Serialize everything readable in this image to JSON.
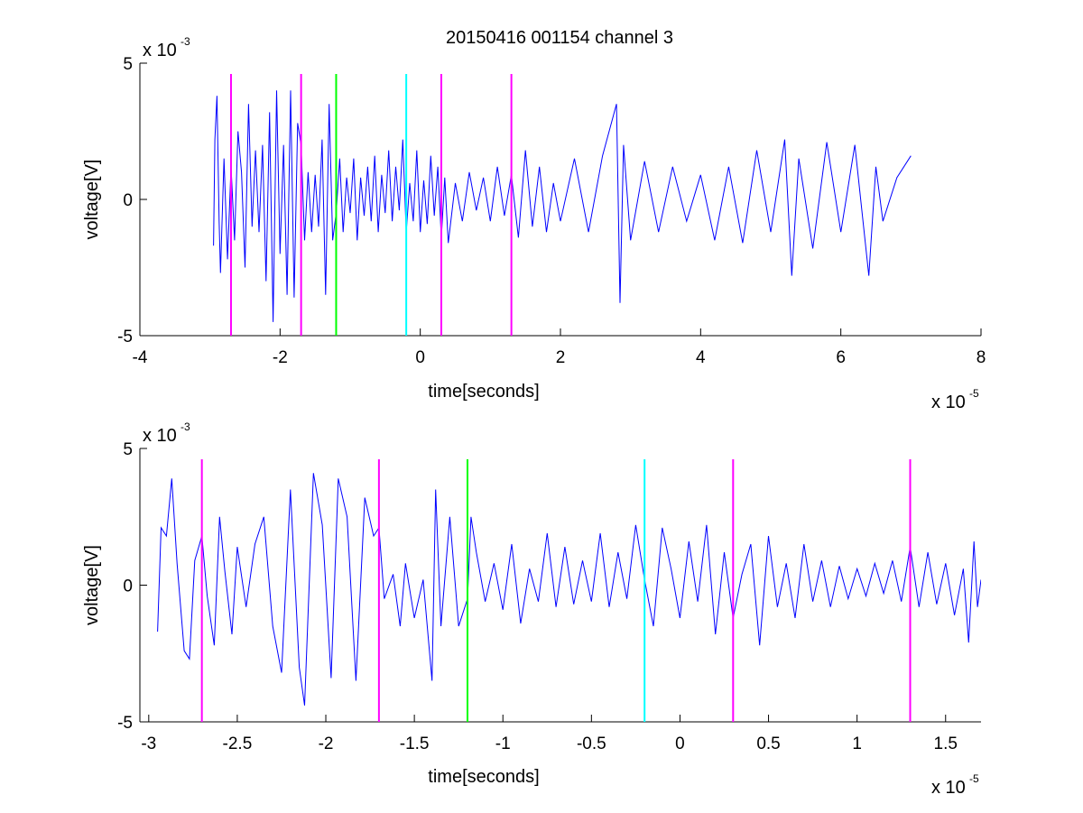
{
  "figure_title": "20150416 001154 channel 3",
  "chart_data": [
    {
      "type": "line",
      "title": "20150416 001154 channel 3",
      "xlabel": "time[seconds]",
      "ylabel": "voltage[V]",
      "xlim": [
        -4e-05,
        8e-05
      ],
      "ylim": [
        -0.005,
        0.005
      ],
      "x_ticks": [
        -4e-05,
        -2e-05,
        0,
        2e-05,
        4e-05,
        6e-05,
        8e-05
      ],
      "x_tick_labels": [
        "-4",
        "-2",
        "0",
        "2",
        "4",
        "6",
        "8"
      ],
      "y_ticks": [
        -0.005,
        0,
        0.005
      ],
      "y_tick_labels": [
        "-5",
        "0",
        "5"
      ],
      "x_exponent": {
        "base": "x 10",
        "power": "-5"
      },
      "y_exponent": {
        "base": "x 10",
        "power": "-3"
      },
      "grid": false,
      "series": [
        {
          "color": "#0000ff",
          "x_start": -2.95e-05,
          "x_end": 7e-05,
          "points": [
            [
              -2.95e-05,
              -0.0017
            ],
            [
              -2.93e-05,
              0.0022
            ],
            [
              -2.9e-05,
              0.0038
            ],
            [
              -2.87e-05,
              -0.0008
            ],
            [
              -2.85e-05,
              -0.0027
            ],
            [
              -2.8e-05,
              0.0015
            ],
            [
              -2.75e-05,
              -0.0022
            ],
            [
              -2.7e-05,
              0.0012
            ],
            [
              -2.65e-05,
              -0.0015
            ],
            [
              -2.6e-05,
              0.0025
            ],
            [
              -2.55e-05,
              0.001
            ],
            [
              -2.5e-05,
              -0.0025
            ],
            [
              -2.45e-05,
              0.0035
            ],
            [
              -2.4e-05,
              -0.001
            ],
            [
              -2.35e-05,
              0.0018
            ],
            [
              -2.3e-05,
              -0.0012
            ],
            [
              -2.25e-05,
              0.002
            ],
            [
              -2.2e-05,
              -0.003
            ],
            [
              -2.15e-05,
              0.0032
            ],
            [
              -2.1e-05,
              -0.0045
            ],
            [
              -2.05e-05,
              0.004
            ],
            [
              -2e-05,
              -0.002
            ],
            [
              -1.95e-05,
              0.002
            ],
            [
              -1.9e-05,
              -0.0035
            ],
            [
              -1.85e-05,
              0.004
            ],
            [
              -1.8e-05,
              -0.0036
            ],
            [
              -1.75e-05,
              0.0028
            ],
            [
              -1.7e-05,
              0.002
            ],
            [
              -1.65e-05,
              -0.0015
            ],
            [
              -1.6e-05,
              0.001
            ],
            [
              -1.55e-05,
              -0.0012
            ],
            [
              -1.5e-05,
              0.0009
            ],
            [
              -1.45e-05,
              -0.001
            ],
            [
              -1.4e-05,
              0.0022
            ],
            [
              -1.35e-05,
              -0.0035
            ],
            [
              -1.3e-05,
              0.0035
            ],
            [
              -1.25e-05,
              -0.0015
            ],
            [
              -1.2e-05,
              -0.0005
            ],
            [
              -1.15e-05,
              0.0015
            ],
            [
              -1.1e-05,
              -0.0012
            ],
            [
              -1.05e-05,
              0.0008
            ],
            [
              -1e-05,
              -0.0005
            ],
            [
              -9.5e-06,
              0.0015
            ],
            [
              -9e-06,
              -0.0015
            ],
            [
              -8.5e-06,
              0.0008
            ],
            [
              -8e-06,
              -0.0006
            ],
            [
              -7.5e-06,
              0.0012
            ],
            [
              -7e-06,
              -0.0008
            ],
            [
              -6.5e-06,
              0.0016
            ],
            [
              -6e-06,
              -0.0012
            ],
            [
              -5.5e-06,
              0.0009
            ],
            [
              -5e-06,
              -0.0005
            ],
            [
              -4.5e-06,
              0.0018
            ],
            [
              -4e-06,
              -0.0008
            ],
            [
              -3.5e-06,
              0.0012
            ],
            [
              -3e-06,
              -0.0004
            ],
            [
              -2.5e-06,
              0.0022
            ],
            [
              -2e-06,
              -0.0012
            ],
            [
              -1.5e-06,
              0.0006
            ],
            [
              -1e-06,
              -0.0008
            ],
            [
              -5e-07,
              0.0018
            ],
            [
              0,
              -0.0012
            ],
            [
              5e-07,
              0.0007
            ],
            [
              1e-06,
              -0.0009
            ],
            [
              1.5e-06,
              0.0016
            ],
            [
              2e-06,
              -0.0006
            ],
            [
              2.5e-06,
              0.0012
            ],
            [
              3e-06,
              -0.0014
            ],
            [
              3.5e-06,
              0.0008
            ],
            [
              4e-06,
              -0.0016
            ],
            [
              5e-06,
              0.0006
            ],
            [
              6e-06,
              -0.0008
            ],
            [
              7e-06,
              0.001
            ],
            [
              8e-06,
              -0.0004
            ],
            [
              9e-06,
              0.0008
            ],
            [
              1e-05,
              -0.0008
            ],
            [
              1.1e-05,
              0.0012
            ],
            [
              1.2e-05,
              -0.0006
            ],
            [
              1.3e-05,
              0.0009
            ],
            [
              1.4e-05,
              -0.0014
            ],
            [
              1.5e-05,
              0.0018
            ],
            [
              1.6e-05,
              -0.001
            ],
            [
              1.7e-05,
              0.0012
            ],
            [
              1.8e-05,
              -0.0012
            ],
            [
              1.9e-05,
              0.0006
            ],
            [
              2e-05,
              -0.0008
            ],
            [
              2.2e-05,
              0.0015
            ],
            [
              2.4e-05,
              -0.0012
            ],
            [
              2.6e-05,
              0.0016
            ],
            [
              2.8e-05,
              0.0035
            ],
            [
              2.85e-05,
              -0.0038
            ],
            [
              2.9e-05,
              0.002
            ],
            [
              3e-05,
              -0.0015
            ],
            [
              3.2e-05,
              0.0014
            ],
            [
              3.4e-05,
              -0.0012
            ],
            [
              3.6e-05,
              0.0012
            ],
            [
              3.8e-05,
              -0.0008
            ],
            [
              4e-05,
              0.0009
            ],
            [
              4.2e-05,
              -0.0015
            ],
            [
              4.4e-05,
              0.0012
            ],
            [
              4.6e-05,
              -0.0016
            ],
            [
              4.8e-05,
              0.0018
            ],
            [
              5e-05,
              -0.0012
            ],
            [
              5.2e-05,
              0.0022
            ],
            [
              5.3e-05,
              -0.0028
            ],
            [
              5.4e-05,
              0.0015
            ],
            [
              5.6e-05,
              -0.0018
            ],
            [
              5.8e-05,
              0.0021
            ],
            [
              6e-05,
              -0.0012
            ],
            [
              6.2e-05,
              0.002
            ],
            [
              6.4e-05,
              -0.0028
            ],
            [
              6.5e-05,
              0.0012
            ],
            [
              6.6e-05,
              -0.0008
            ],
            [
              6.8e-05,
              0.0008
            ],
            [
              7e-05,
              0.0016
            ]
          ]
        }
      ],
      "markers": [
        {
          "x": -2.7e-05,
          "color": "#ff00ff"
        },
        {
          "x": -1.7e-05,
          "color": "#ff00ff"
        },
        {
          "x": -1.2e-05,
          "color": "#00ff00"
        },
        {
          "x": -2e-06,
          "color": "#00ffff"
        },
        {
          "x": 3e-06,
          "color": "#ff00ff"
        },
        {
          "x": 1.3e-05,
          "color": "#ff00ff"
        }
      ]
    },
    {
      "type": "line",
      "title": "",
      "xlabel": "time[seconds]",
      "ylabel": "voltage[V]",
      "xlim": [
        -3.05e-05,
        1.7e-05
      ],
      "ylim": [
        -0.005,
        0.005
      ],
      "x_ticks": [
        -3e-05,
        -2.5e-05,
        -2e-05,
        -1.5e-05,
        -1e-05,
        -5e-06,
        0,
        5e-06,
        1e-05,
        1.5e-05
      ],
      "x_tick_labels": [
        "-3",
        "-2.5",
        "-2",
        "-1.5",
        "-1",
        "-0.5",
        "0",
        "0.5",
        "1",
        "1.5"
      ],
      "y_ticks": [
        -0.005,
        0,
        0.005
      ],
      "y_tick_labels": [
        "-5",
        "0",
        "5"
      ],
      "x_exponent": {
        "base": "x 10",
        "power": "-5"
      },
      "y_exponent": {
        "base": "x 10",
        "power": "-3"
      },
      "grid": false,
      "series": [
        {
          "color": "#0000ff",
          "points": [
            [
              -2.95e-05,
              -0.0017
            ],
            [
              -2.93e-05,
              0.0021
            ],
            [
              -2.9e-05,
              0.0018
            ],
            [
              -2.87e-05,
              0.0039
            ],
            [
              -2.84e-05,
              0.0008
            ],
            [
              -2.8e-05,
              -0.0024
            ],
            [
              -2.77e-05,
              -0.0027
            ],
            [
              -2.74e-05,
              0.0009
            ],
            [
              -2.7e-05,
              0.0018
            ],
            [
              -2.67e-05,
              -0.0004
            ],
            [
              -2.63e-05,
              -0.0022
            ],
            [
              -2.6e-05,
              0.0025
            ],
            [
              -2.57e-05,
              0.0005
            ],
            [
              -2.53e-05,
              -0.0018
            ],
            [
              -2.5e-05,
              0.0014
            ],
            [
              -2.45e-05,
              -0.0008
            ],
            [
              -2.4e-05,
              0.0015
            ],
            [
              -2.35e-05,
              0.0025
            ],
            [
              -2.3e-05,
              -0.0015
            ],
            [
              -2.25e-05,
              -0.0032
            ],
            [
              -2.2e-05,
              0.0035
            ],
            [
              -2.15e-05,
              -0.003
            ],
            [
              -2.12e-05,
              -0.0044
            ],
            [
              -2.07e-05,
              0.0041
            ],
            [
              -2.02e-05,
              0.0022
            ],
            [
              -1.97e-05,
              -0.0034
            ],
            [
              -1.93e-05,
              0.0039
            ],
            [
              -1.88e-05,
              0.0025
            ],
            [
              -1.83e-05,
              -0.0035
            ],
            [
              -1.78e-05,
              0.0032
            ],
            [
              -1.73e-05,
              0.0018
            ],
            [
              -1.7e-05,
              0.0021
            ],
            [
              -1.67e-05,
              -0.0005
            ],
            [
              -1.62e-05,
              0.0004
            ],
            [
              -1.58e-05,
              -0.0015
            ],
            [
              -1.55e-05,
              0.0008
            ],
            [
              -1.5e-05,
              -0.0012
            ],
            [
              -1.45e-05,
              0.0002
            ],
            [
              -1.4e-05,
              -0.0035
            ],
            [
              -1.38e-05,
              0.0035
            ],
            [
              -1.35e-05,
              -0.0015
            ],
            [
              -1.3e-05,
              0.0025
            ],
            [
              -1.25e-05,
              -0.0015
            ],
            [
              -1.2e-05,
              -0.0005
            ],
            [
              -1.18e-05,
              0.0025
            ],
            [
              -1.15e-05,
              0.0012
            ],
            [
              -1.1e-05,
              -0.0006
            ],
            [
              -1.05e-05,
              0.0008
            ],
            [
              -1e-05,
              -0.0009
            ],
            [
              -9.5e-06,
              0.0015
            ],
            [
              -9e-06,
              -0.0014
            ],
            [
              -8.5e-06,
              0.0006
            ],
            [
              -8e-06,
              -0.0006
            ],
            [
              -7.5e-06,
              0.0019
            ],
            [
              -7e-06,
              -0.0008
            ],
            [
              -6.5e-06,
              0.0014
            ],
            [
              -6e-06,
              -0.0007
            ],
            [
              -5.5e-06,
              0.0009
            ],
            [
              -5e-06,
              -0.0006
            ],
            [
              -4.5e-06,
              0.0019
            ],
            [
              -4e-06,
              -0.0008
            ],
            [
              -3.5e-06,
              0.0012
            ],
            [
              -3e-06,
              -0.0005
            ],
            [
              -2.5e-06,
              0.0022
            ],
            [
              -2e-06,
              0.0002
            ],
            [
              -1.5e-06,
              -0.0015
            ],
            [
              -1e-06,
              0.0021
            ],
            [
              -5e-07,
              0.0006
            ],
            [
              0,
              -0.0012
            ],
            [
              5e-07,
              0.0016
            ],
            [
              1e-06,
              -0.0006
            ],
            [
              1.5e-06,
              0.0022
            ],
            [
              2e-06,
              -0.0018
            ],
            [
              2.5e-06,
              0.0012
            ],
            [
              3e-06,
              -0.0012
            ],
            [
              3.5e-06,
              0.0004
            ],
            [
              4e-06,
              0.0015
            ],
            [
              4.5e-06,
              -0.0022
            ],
            [
              5e-06,
              0.0018
            ],
            [
              5.5e-06,
              -0.0008
            ],
            [
              6e-06,
              0.0008
            ],
            [
              6.5e-06,
              -0.0012
            ],
            [
              7e-06,
              0.0015
            ],
            [
              7.5e-06,
              -0.0006
            ],
            [
              8e-06,
              0.0009
            ],
            [
              8.5e-06,
              -0.0008
            ],
            [
              9e-06,
              0.0007
            ],
            [
              9.5e-06,
              -0.0005
            ],
            [
              1e-05,
              0.0006
            ],
            [
              1.05e-05,
              -0.0004
            ],
            [
              1.1e-05,
              0.0008
            ],
            [
              1.15e-05,
              -0.0003
            ],
            [
              1.2e-05,
              0.0009
            ],
            [
              1.25e-05,
              -0.0006
            ],
            [
              1.3e-05,
              0.0014
            ],
            [
              1.35e-05,
              -0.0008
            ],
            [
              1.4e-05,
              0.0012
            ],
            [
              1.45e-05,
              -0.0007
            ],
            [
              1.5e-05,
              0.0008
            ],
            [
              1.55e-05,
              -0.0011
            ],
            [
              1.6e-05,
              0.0006
            ],
            [
              1.63e-05,
              -0.0021
            ],
            [
              1.66e-05,
              0.0016
            ],
            [
              1.68e-05,
              -0.0008
            ],
            [
              1.7e-05,
              0.0002
            ]
          ]
        }
      ],
      "markers": [
        {
          "x": -2.7e-05,
          "color": "#ff00ff"
        },
        {
          "x": -1.7e-05,
          "color": "#ff00ff"
        },
        {
          "x": -1.2e-05,
          "color": "#00ff00"
        },
        {
          "x": -2e-06,
          "color": "#00ffff"
        },
        {
          "x": 3e-06,
          "color": "#ff00ff"
        },
        {
          "x": 1.3e-05,
          "color": "#ff00ff"
        }
      ]
    }
  ]
}
